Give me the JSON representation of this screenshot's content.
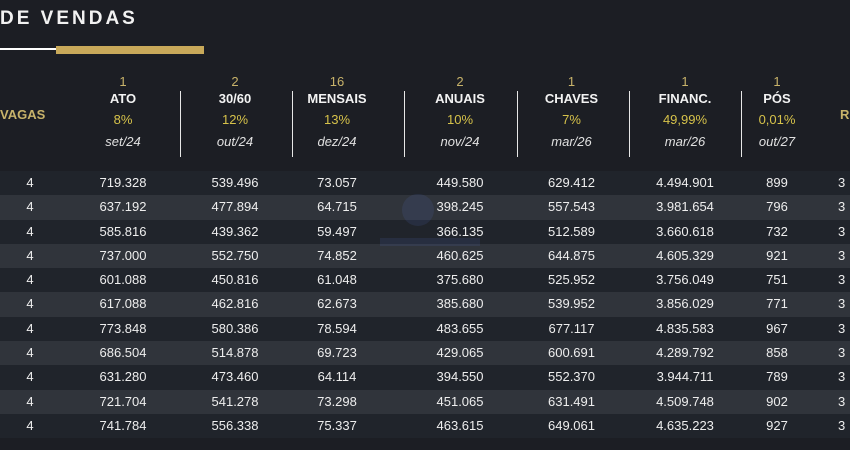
{
  "header": {
    "title": "DE VENDAS"
  },
  "columns": {
    "vagas": {
      "name": "VAGAS"
    },
    "ato": {
      "count": "1",
      "name": "ATO",
      "pct": "8%",
      "date": "set/24"
    },
    "m3060": {
      "count": "2",
      "name": "30/60",
      "pct": "12%",
      "date": "out/24"
    },
    "mensais": {
      "count": "16",
      "name": "MENSAIS",
      "pct": "13%",
      "date": "dez/24"
    },
    "anuais": {
      "count": "2",
      "name": "ANUAIS",
      "pct": "10%",
      "date": "nov/24"
    },
    "chaves": {
      "count": "1",
      "name": "CHAVES",
      "pct": "7%",
      "date": "mar/26"
    },
    "financ": {
      "count": "1",
      "name": "FINANC.",
      "pct": "49,99%",
      "date": "mar/26"
    },
    "pos": {
      "count": "1",
      "name": "PÓS",
      "pct": "0,01%",
      "date": "out/27"
    },
    "r": {
      "name": "R"
    }
  },
  "rows": [
    {
      "vagas": "4",
      "ato": "719.328",
      "m3060": "539.496",
      "mensais": "73.057",
      "anuais": "449.580",
      "chaves": "629.412",
      "financ": "4.494.901",
      "pos": "899",
      "r": "3"
    },
    {
      "vagas": "4",
      "ato": "637.192",
      "m3060": "477.894",
      "mensais": "64.715",
      "anuais": "398.245",
      "chaves": "557.543",
      "financ": "3.981.654",
      "pos": "796",
      "r": "3"
    },
    {
      "vagas": "4",
      "ato": "585.816",
      "m3060": "439.362",
      "mensais": "59.497",
      "anuais": "366.135",
      "chaves": "512.589",
      "financ": "3.660.618",
      "pos": "732",
      "r": "3"
    },
    {
      "vagas": "4",
      "ato": "737.000",
      "m3060": "552.750",
      "mensais": "74.852",
      "anuais": "460.625",
      "chaves": "644.875",
      "financ": "4.605.329",
      "pos": "921",
      "r": "3"
    },
    {
      "vagas": "4",
      "ato": "601.088",
      "m3060": "450.816",
      "mensais": "61.048",
      "anuais": "375.680",
      "chaves": "525.952",
      "financ": "3.756.049",
      "pos": "751",
      "r": "3"
    },
    {
      "vagas": "4",
      "ato": "617.088",
      "m3060": "462.816",
      "mensais": "62.673",
      "anuais": "385.680",
      "chaves": "539.952",
      "financ": "3.856.029",
      "pos": "771",
      "r": "3"
    },
    {
      "vagas": "4",
      "ato": "773.848",
      "m3060": "580.386",
      "mensais": "78.594",
      "anuais": "483.655",
      "chaves": "677.117",
      "financ": "4.835.583",
      "pos": "967",
      "r": "3"
    },
    {
      "vagas": "4",
      "ato": "686.504",
      "m3060": "514.878",
      "mensais": "69.723",
      "anuais": "429.065",
      "chaves": "600.691",
      "financ": "4.289.792",
      "pos": "858",
      "r": "3"
    },
    {
      "vagas": "4",
      "ato": "631.280",
      "m3060": "473.460",
      "mensais": "64.114",
      "anuais": "394.550",
      "chaves": "552.370",
      "financ": "3.944.711",
      "pos": "789",
      "r": "3"
    },
    {
      "vagas": "4",
      "ato": "721.704",
      "m3060": "541.278",
      "mensais": "73.298",
      "anuais": "451.065",
      "chaves": "631.491",
      "financ": "4.509.748",
      "pos": "902",
      "r": "3"
    },
    {
      "vagas": "4",
      "ato": "741.784",
      "m3060": "556.338",
      "mensais": "75.337",
      "anuais": "463.615",
      "chaves": "649.061",
      "financ": "4.635.223",
      "pos": "927",
      "r": "3"
    }
  ],
  "colors": {
    "accent_gold": "#c8a95a",
    "pct_yellow": "#d6c24a",
    "background": "#1c1e24"
  }
}
